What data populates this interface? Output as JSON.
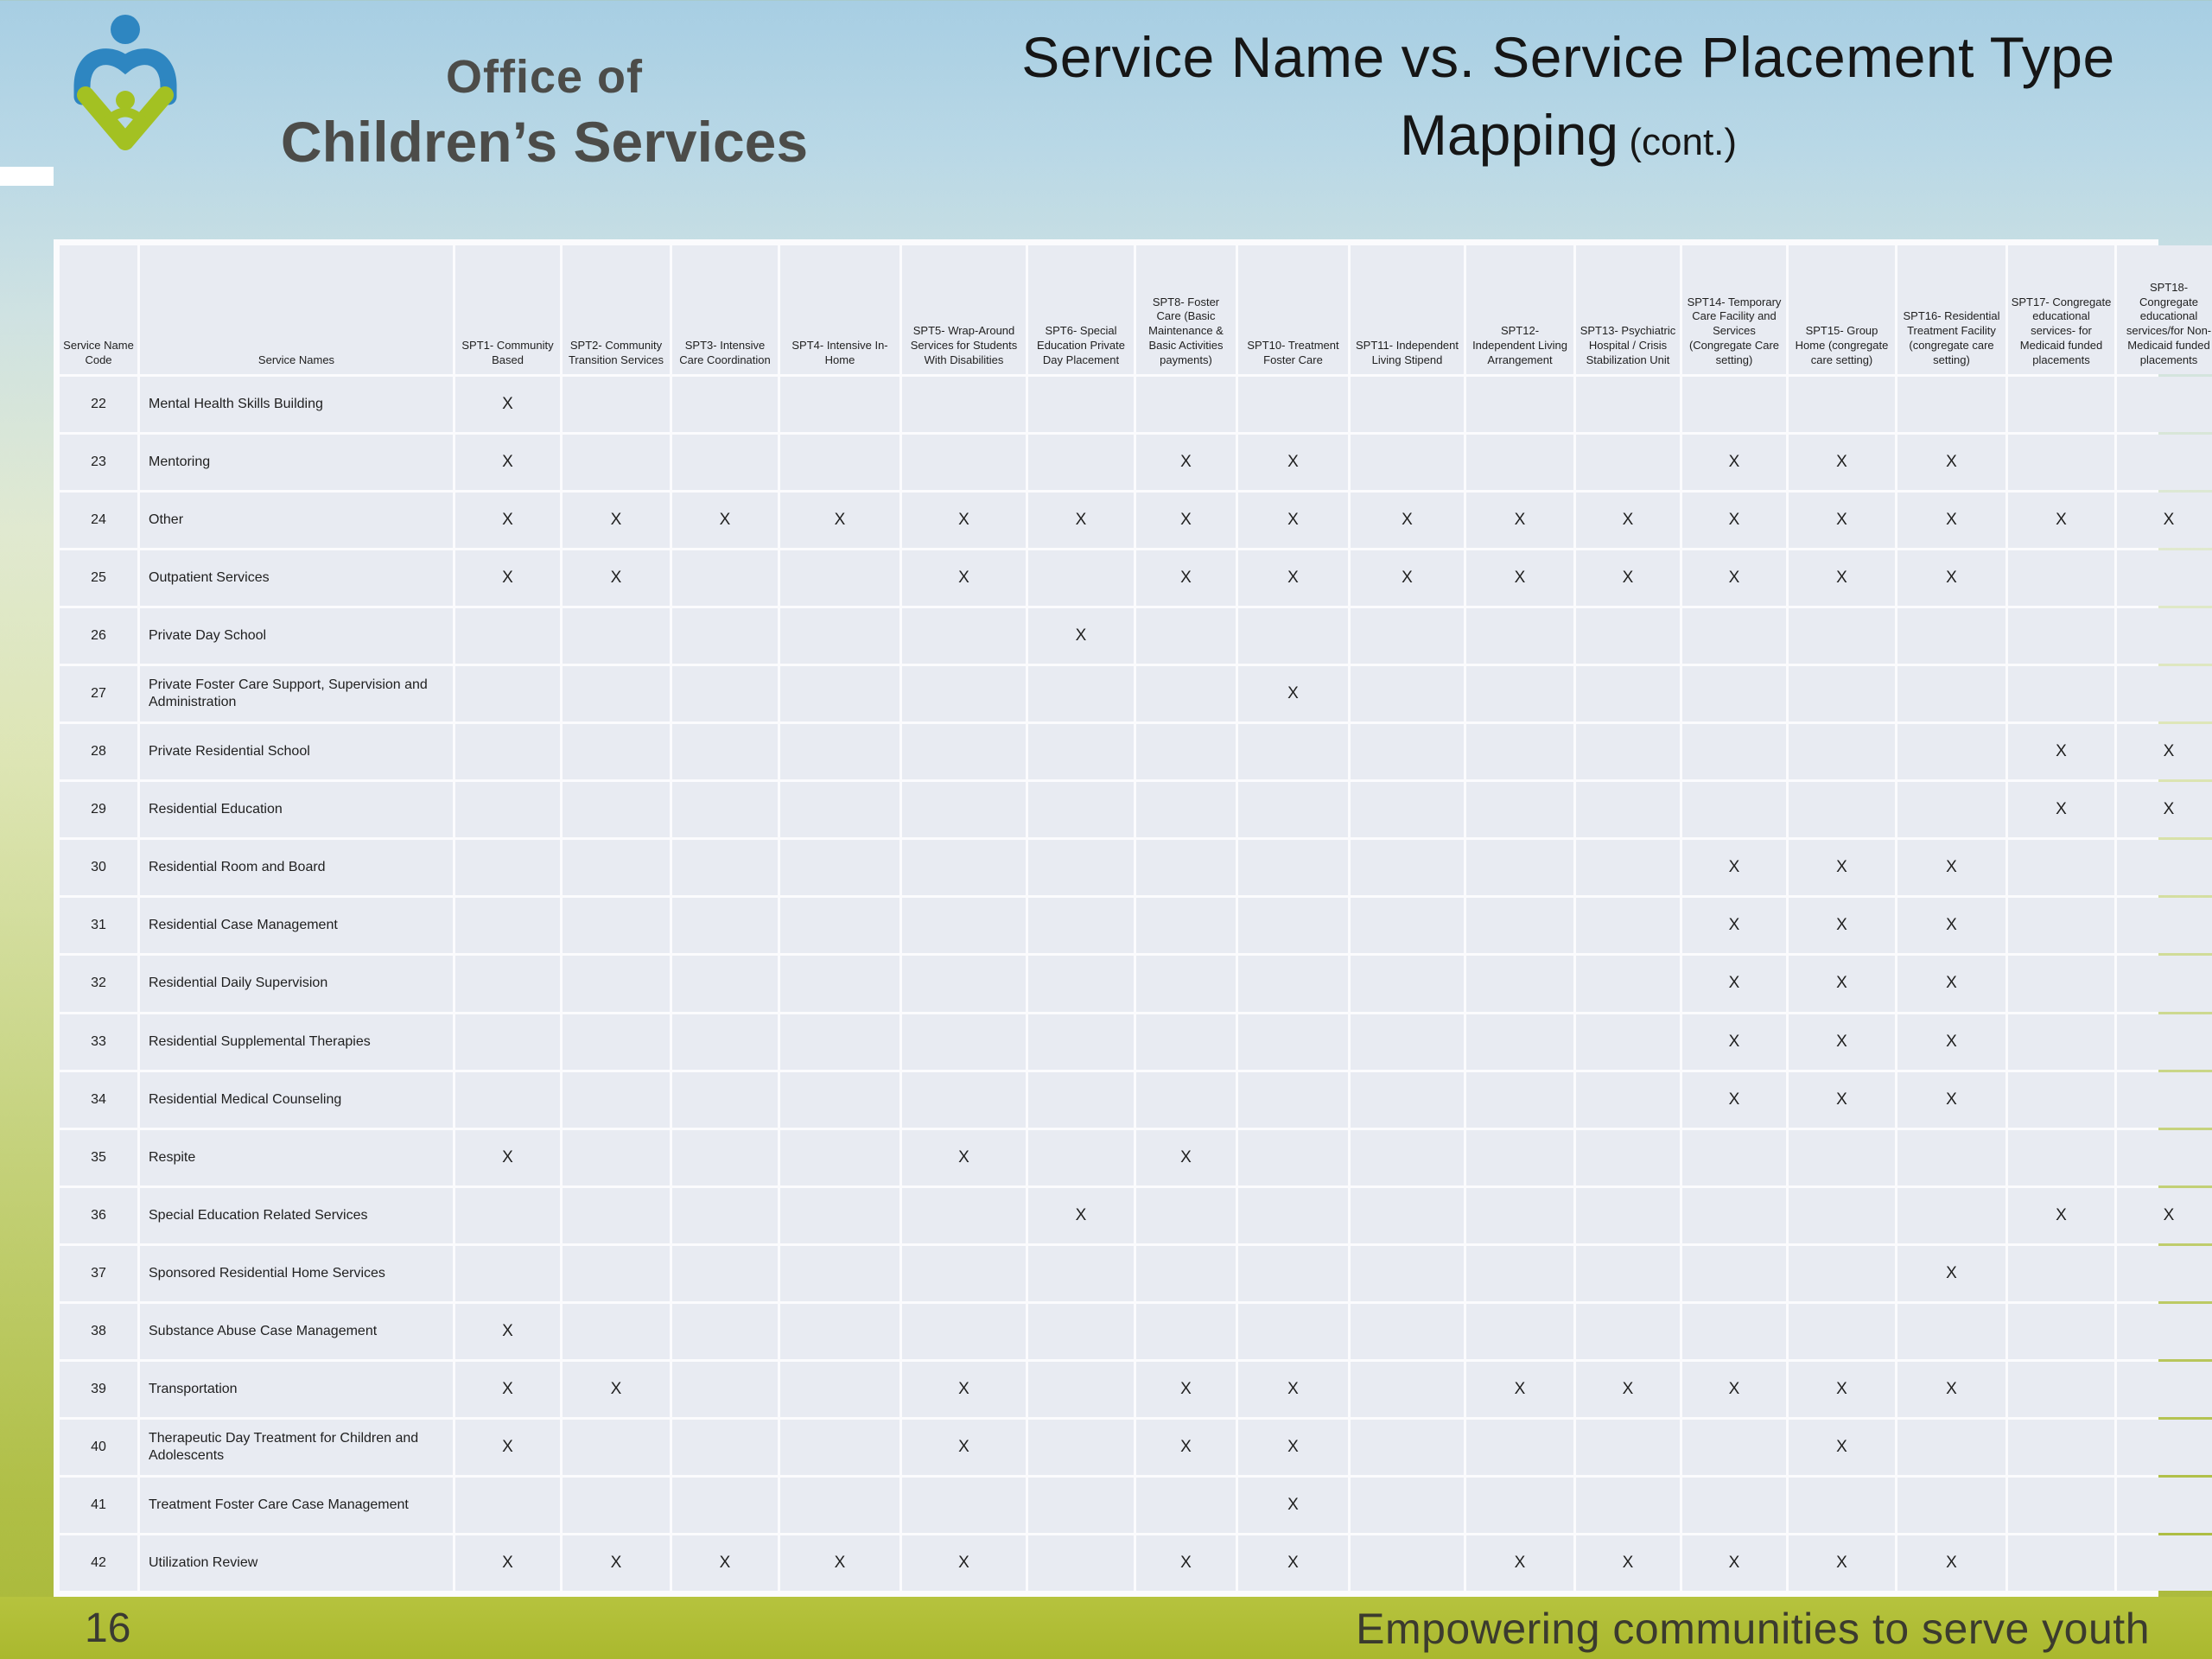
{
  "slide": {
    "logo": {
      "line1": "Office of",
      "line2": "Children’s Services"
    },
    "title": {
      "line1": "Service Name vs. Service Placement Type",
      "line2": "Mapping",
      "suffix": " (cont.)"
    },
    "footer": {
      "page_number": "16",
      "tagline": "Empowering communities to serve youth"
    }
  },
  "colors": {
    "cell_background": "#e8ebf2",
    "panel_background": "#fbfbfd",
    "footer_band": "#b6c33e",
    "logo_blue": "#2e86c1",
    "logo_green": "#a3c122"
  },
  "table": {
    "code_header": "Service Name Code",
    "name_header": "Service Names",
    "mark_symbol": "X",
    "placement_columns": [
      "SPT1- Community Based",
      "SPT2- Community Transition Services",
      "SPT3- Intensive Care Coordination",
      "SPT4- Intensive In-Home",
      "SPT5- Wrap-Around Services for Students With Disabilities",
      "SPT6- Special Education Private Day Placement",
      "SPT8- Foster Care (Basic Maintenance & Basic Activities payments)",
      "SPT10- Treatment Foster Care",
      "SPT11- Independent Living Stipend",
      "SPT12- Independent Living Arrangement",
      "SPT13- Psychiatric Hospital / Crisis Stabilization Unit",
      "SPT14- Temporary Care Facility and Services (Congregate Care setting)",
      "SPT15- Group Home (congregate care setting)",
      "SPT16- Residential Treatment Facility (congregate care setting)",
      "SPT17- Congregate educational services- for Medicaid funded placements",
      "SPT18- Congregate educational services/for Non-Medicaid funded placements"
    ],
    "rows": [
      {
        "code": "22",
        "name": "Mental Health Skills Building",
        "marks": [
          1,
          0,
          0,
          0,
          0,
          0,
          0,
          0,
          0,
          0,
          0,
          0,
          0,
          0,
          0,
          0
        ]
      },
      {
        "code": "23",
        "name": "Mentoring",
        "marks": [
          1,
          0,
          0,
          0,
          0,
          0,
          1,
          1,
          0,
          0,
          0,
          1,
          1,
          1,
          0,
          0
        ]
      },
      {
        "code": "24",
        "name": "Other",
        "marks": [
          1,
          1,
          1,
          1,
          1,
          1,
          1,
          1,
          1,
          1,
          1,
          1,
          1,
          1,
          1,
          1
        ]
      },
      {
        "code": "25",
        "name": "Outpatient Services",
        "marks": [
          1,
          1,
          0,
          0,
          1,
          0,
          1,
          1,
          1,
          1,
          1,
          1,
          1,
          1,
          0,
          0
        ]
      },
      {
        "code": "26",
        "name": "Private Day School",
        "marks": [
          0,
          0,
          0,
          0,
          0,
          1,
          0,
          0,
          0,
          0,
          0,
          0,
          0,
          0,
          0,
          0
        ]
      },
      {
        "code": "27",
        "name": "Private Foster Care Support, Supervision and Administration",
        "marks": [
          0,
          0,
          0,
          0,
          0,
          0,
          0,
          1,
          0,
          0,
          0,
          0,
          0,
          0,
          0,
          0
        ]
      },
      {
        "code": "28",
        "name": "Private Residential School",
        "marks": [
          0,
          0,
          0,
          0,
          0,
          0,
          0,
          0,
          0,
          0,
          0,
          0,
          0,
          0,
          1,
          1
        ]
      },
      {
        "code": "29",
        "name": "Residential Education",
        "marks": [
          0,
          0,
          0,
          0,
          0,
          0,
          0,
          0,
          0,
          0,
          0,
          0,
          0,
          0,
          1,
          1
        ]
      },
      {
        "code": "30",
        "name": "Residential Room and Board",
        "marks": [
          0,
          0,
          0,
          0,
          0,
          0,
          0,
          0,
          0,
          0,
          0,
          1,
          1,
          1,
          0,
          0
        ]
      },
      {
        "code": "31",
        "name": "Residential Case Management",
        "marks": [
          0,
          0,
          0,
          0,
          0,
          0,
          0,
          0,
          0,
          0,
          0,
          1,
          1,
          1,
          0,
          0
        ]
      },
      {
        "code": "32",
        "name": "Residential Daily Supervision",
        "marks": [
          0,
          0,
          0,
          0,
          0,
          0,
          0,
          0,
          0,
          0,
          0,
          1,
          1,
          1,
          0,
          0
        ]
      },
      {
        "code": "33",
        "name": "Residential Supplemental Therapies",
        "marks": [
          0,
          0,
          0,
          0,
          0,
          0,
          0,
          0,
          0,
          0,
          0,
          1,
          1,
          1,
          0,
          0
        ]
      },
      {
        "code": "34",
        "name": "Residential Medical Counseling",
        "marks": [
          0,
          0,
          0,
          0,
          0,
          0,
          0,
          0,
          0,
          0,
          0,
          1,
          1,
          1,
          0,
          0
        ]
      },
      {
        "code": "35",
        "name": "Respite",
        "marks": [
          1,
          0,
          0,
          0,
          1,
          0,
          1,
          0,
          0,
          0,
          0,
          0,
          0,
          0,
          0,
          0
        ]
      },
      {
        "code": "36",
        "name": "Special Education Related Services",
        "marks": [
          0,
          0,
          0,
          0,
          0,
          1,
          0,
          0,
          0,
          0,
          0,
          0,
          0,
          0,
          1,
          1
        ]
      },
      {
        "code": "37",
        "name": "Sponsored Residential Home Services",
        "marks": [
          0,
          0,
          0,
          0,
          0,
          0,
          0,
          0,
          0,
          0,
          0,
          0,
          0,
          1,
          0,
          0
        ]
      },
      {
        "code": "38",
        "name": "Substance Abuse Case Management",
        "marks": [
          1,
          0,
          0,
          0,
          0,
          0,
          0,
          0,
          0,
          0,
          0,
          0,
          0,
          0,
          0,
          0
        ]
      },
      {
        "code": "39",
        "name": "Transportation",
        "marks": [
          1,
          1,
          0,
          0,
          1,
          0,
          1,
          1,
          0,
          1,
          1,
          1,
          1,
          1,
          0,
          0
        ]
      },
      {
        "code": "40",
        "name": "Therapeutic Day Treatment for Children and Adolescents",
        "marks": [
          1,
          0,
          0,
          0,
          1,
          0,
          1,
          1,
          0,
          0,
          0,
          0,
          1,
          0,
          0,
          0
        ]
      },
      {
        "code": "41",
        "name": "Treatment Foster Care Case Management",
        "marks": [
          0,
          0,
          0,
          0,
          0,
          0,
          0,
          1,
          0,
          0,
          0,
          0,
          0,
          0,
          0,
          0
        ]
      },
      {
        "code": "42",
        "name": "Utilization Review",
        "marks": [
          1,
          1,
          1,
          1,
          1,
          0,
          1,
          1,
          0,
          1,
          1,
          1,
          1,
          1,
          0,
          0
        ]
      }
    ]
  }
}
